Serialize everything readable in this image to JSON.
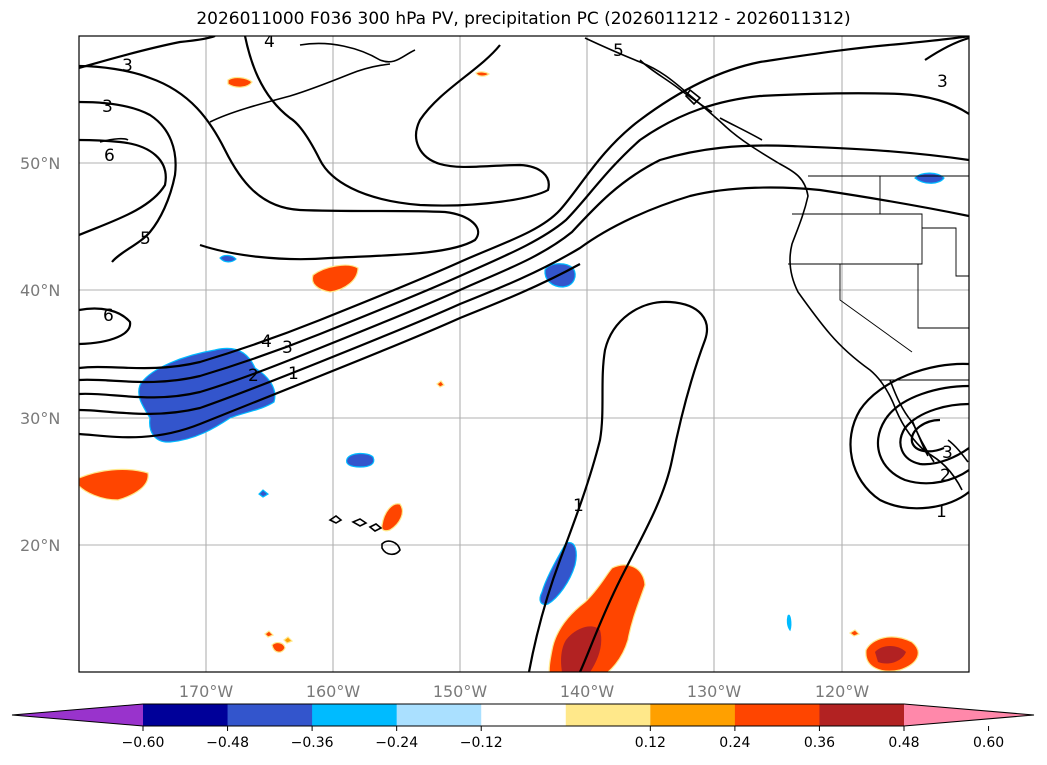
{
  "title": "2026011000 F036 300 hPa PV, precipitation PC (2026011212 - 2026011312)",
  "map": {
    "projection": "PlateCarree",
    "lon_range": [
      -180,
      -110
    ],
    "lat_range": [
      10,
      60
    ],
    "lon_ticks": [
      "170°W",
      "160°W",
      "150°W",
      "140°W",
      "130°W",
      "120°W"
    ],
    "lat_ticks": [
      "50°N",
      "40°N",
      "30°N",
      "20°N"
    ],
    "gridlines": true
  },
  "pv_contour_labels": {
    "l1": "3",
    "l2": "4",
    "l3": "3",
    "l4": "6",
    "l5": "5",
    "l6": "6",
    "l7": "4",
    "l8": "3",
    "l9": "2",
    "l10": "1",
    "l11": "1",
    "l12": "3",
    "l13": "3",
    "l14": "2",
    "l15": "1",
    "l16": "5"
  },
  "colorbar": {
    "ticks": [
      "−0.60",
      "−0.48",
      "−0.36",
      "−0.24",
      "−0.12",
      "0.12",
      "0.24",
      "0.36",
      "0.48",
      "0.60"
    ],
    "colors": [
      "#9933cc",
      "#000099",
      "#3355cc",
      "#00bbff",
      "#aae0ff",
      "#ffffff",
      "#ffe88a",
      "#ffa000",
      "#ff4500",
      "#b22222",
      "#ff88aa"
    ],
    "extend": "both"
  }
}
